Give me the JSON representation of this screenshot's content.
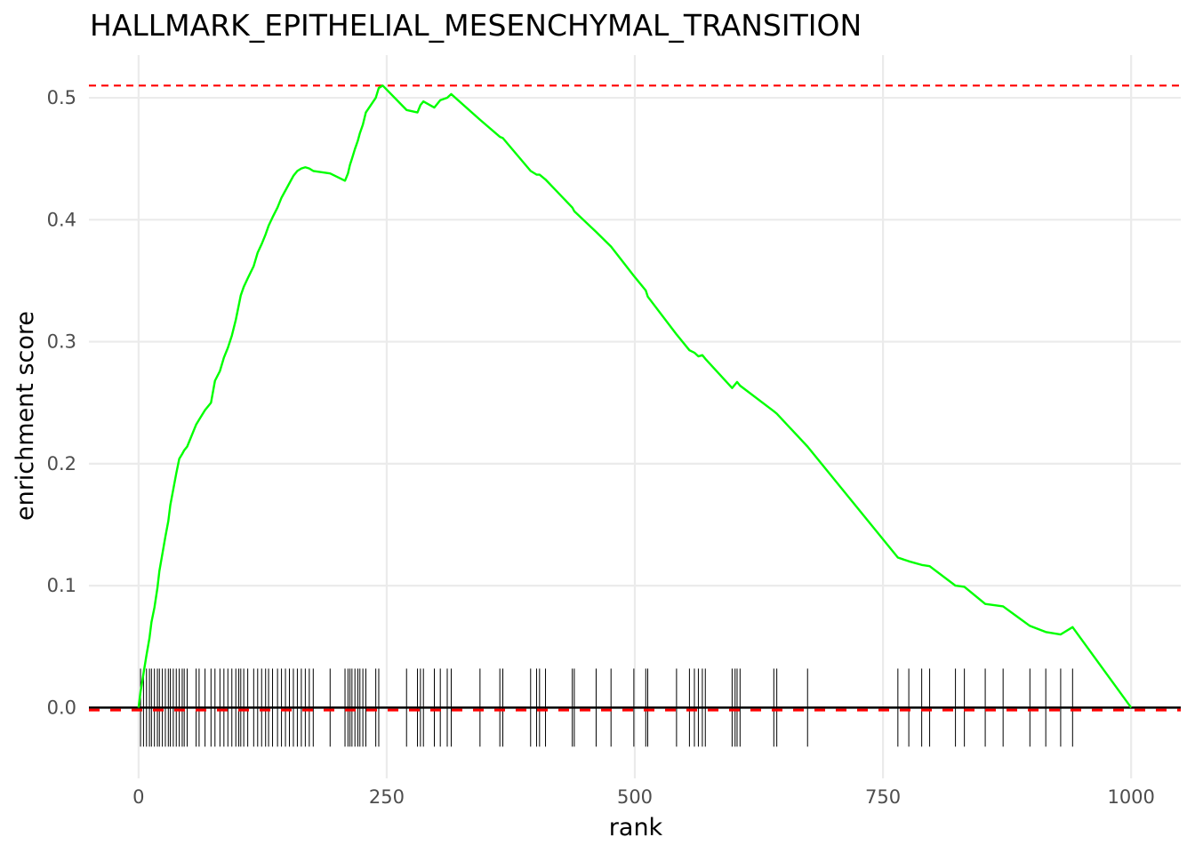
{
  "chart_data": {
    "type": "line",
    "title": "HALLMARK_EPITHELIAL_MESENCHYMAL_TRANSITION",
    "xlabel": "rank",
    "ylabel": "enrichment score",
    "xlim": [
      -50,
      1050
    ],
    "ylim": [
      -0.058,
      0.535
    ],
    "x_ticks": [
      0,
      250,
      500,
      750,
      1000
    ],
    "x_tick_labels": [
      "0",
      "250",
      "500",
      "750",
      "1000"
    ],
    "y_ticks": [
      0.0,
      0.1,
      0.2,
      0.3,
      0.4,
      0.5
    ],
    "y_tick_labels": [
      "0.0",
      "0.1",
      "0.2",
      "0.3",
      "0.4",
      "0.5"
    ],
    "grid": true,
    "max_es": 0.51,
    "min_es": -0.002,
    "gene_ranks": [
      2,
      5,
      8,
      11,
      13,
      16,
      19,
      21,
      24,
      27,
      30,
      32,
      35,
      38,
      41,
      44,
      46,
      49,
      58,
      61,
      67,
      73,
      77,
      82,
      86,
      90,
      94,
      98,
      101,
      103,
      106,
      110,
      116,
      120,
      124,
      128,
      131,
      135,
      140,
      144,
      148,
      152,
      156,
      160,
      164,
      168,
      172,
      176,
      193,
      208,
      211,
      213,
      215,
      218,
      221,
      223,
      226,
      229,
      239,
      242,
      270,
      281,
      284,
      287,
      298,
      304,
      311,
      315,
      344,
      364,
      367,
      395,
      401,
      404,
      410,
      437,
      439,
      461,
      476,
      499,
      511,
      513,
      542,
      555,
      560,
      564,
      568,
      571,
      598,
      601,
      603,
      606,
      640,
      643,
      674,
      765,
      776,
      789,
      797,
      823,
      832,
      853,
      871,
      898,
      914,
      929,
      941
    ],
    "running_es": {
      "x": [
        0,
        2,
        5,
        8,
        11,
        13,
        16,
        19,
        21,
        24,
        27,
        30,
        32,
        35,
        38,
        41,
        44,
        46,
        49,
        58,
        61,
        67,
        73,
        77,
        82,
        86,
        90,
        94,
        98,
        101,
        103,
        106,
        110,
        116,
        120,
        124,
        128,
        131,
        135,
        140,
        144,
        148,
        152,
        156,
        160,
        164,
        168,
        172,
        176,
        193,
        208,
        211,
        213,
        215,
        218,
        221,
        223,
        226,
        229,
        239,
        242,
        246,
        270,
        281,
        284,
        287,
        298,
        304,
        311,
        315,
        344,
        364,
        367,
        395,
        401,
        404,
        410,
        437,
        439,
        461,
        476,
        499,
        511,
        513,
        542,
        555,
        560,
        564,
        568,
        571,
        598,
        601,
        603,
        606,
        640,
        643,
        674,
        765,
        776,
        789,
        797,
        823,
        832,
        853,
        871,
        898,
        914,
        929,
        941,
        1000
      ],
      "y": [
        0.0,
        0.013,
        0.028,
        0.043,
        0.057,
        0.07,
        0.082,
        0.098,
        0.112,
        0.126,
        0.14,
        0.153,
        0.166,
        0.179,
        0.192,
        0.204,
        0.208,
        0.211,
        0.214,
        0.232,
        0.236,
        0.244,
        0.25,
        0.268,
        0.276,
        0.287,
        0.295,
        0.305,
        0.318,
        0.33,
        0.338,
        0.345,
        0.352,
        0.362,
        0.373,
        0.38,
        0.388,
        0.395,
        0.402,
        0.41,
        0.418,
        0.424,
        0.43,
        0.436,
        0.44,
        0.442,
        0.443,
        0.442,
        0.44,
        0.438,
        0.432,
        0.438,
        0.445,
        0.45,
        0.458,
        0.465,
        0.471,
        0.478,
        0.488,
        0.5,
        0.508,
        0.51,
        0.49,
        0.488,
        0.494,
        0.497,
        0.492,
        0.498,
        0.5,
        0.503,
        0.482,
        0.468,
        0.467,
        0.44,
        0.437,
        0.437,
        0.433,
        0.41,
        0.407,
        0.39,
        0.378,
        0.354,
        0.342,
        0.337,
        0.306,
        0.293,
        0.291,
        0.288,
        0.289,
        0.286,
        0.262,
        0.265,
        0.267,
        0.264,
        0.243,
        0.241,
        0.214,
        0.123,
        0.12,
        0.117,
        0.116,
        0.1,
        0.099,
        0.085,
        0.083,
        0.067,
        0.062,
        0.06,
        0.066,
        0.0
      ]
    },
    "colors": {
      "es_line": "#00ff00",
      "reference_lines": "#ff0000",
      "zero_line": "#000000",
      "rug": "#000000",
      "grid": "#ebebeb"
    }
  }
}
